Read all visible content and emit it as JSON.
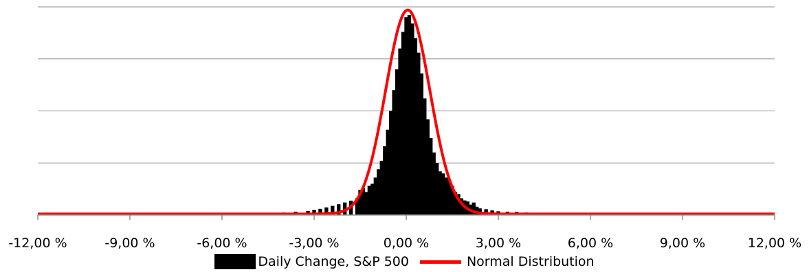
{
  "chart_data": {
    "type": "bar",
    "title": "",
    "xlabel": "",
    "ylabel": "",
    "x_unit": "percent",
    "xlim": [
      -12,
      12
    ],
    "x_ticks": [
      -12,
      -9,
      -6,
      -3,
      0,
      3,
      6,
      9,
      12
    ],
    "x_tick_labels": [
      "-12,00 %",
      "-9,00 %",
      "-6,00 %",
      "-3,00 %",
      "0,00 %",
      "3,00 %",
      "6,00 %",
      "9,00 %",
      "12,00 %"
    ],
    "y_gridlines": 4,
    "grid": true,
    "legend_placement": "bottom",
    "series": [
      {
        "name": "Daily Change, S&P 500",
        "type": "histogram",
        "color": "#000000",
        "points": [
          {
            "x": -10.0,
            "y": 0.002
          },
          {
            "x": -9.4,
            "y": 0.006
          },
          {
            "x": -7.8,
            "y": 0.004
          },
          {
            "x": -6.8,
            "y": 0.005
          },
          {
            "x": -6.2,
            "y": 0.006
          },
          {
            "x": -5.5,
            "y": 0.006
          },
          {
            "x": -5.2,
            "y": 0.008
          },
          {
            "x": -4.8,
            "y": 0.009
          },
          {
            "x": -4.4,
            "y": 0.011
          },
          {
            "x": -4.0,
            "y": 0.012
          },
          {
            "x": -3.6,
            "y": 0.015
          },
          {
            "x": -3.2,
            "y": 0.02
          },
          {
            "x": -3.0,
            "y": 0.024
          },
          {
            "x": -2.8,
            "y": 0.03
          },
          {
            "x": -2.6,
            "y": 0.036
          },
          {
            "x": -2.4,
            "y": 0.044
          },
          {
            "x": -2.2,
            "y": 0.052
          },
          {
            "x": -2.0,
            "y": 0.06
          },
          {
            "x": -1.8,
            "y": 0.068
          },
          {
            "x": -1.6,
            "y": 0.08
          },
          {
            "x": -1.5,
            "y": 0.12
          },
          {
            "x": -1.4,
            "y": 0.13
          },
          {
            "x": -1.3,
            "y": 0.11
          },
          {
            "x": -1.2,
            "y": 0.14
          },
          {
            "x": -1.1,
            "y": 0.15
          },
          {
            "x": -1.0,
            "y": 0.18
          },
          {
            "x": -0.9,
            "y": 0.22
          },
          {
            "x": -0.8,
            "y": 0.26
          },
          {
            "x": -0.7,
            "y": 0.33
          },
          {
            "x": -0.6,
            "y": 0.41
          },
          {
            "x": -0.5,
            "y": 0.5
          },
          {
            "x": -0.4,
            "y": 0.6
          },
          {
            "x": -0.3,
            "y": 0.7
          },
          {
            "x": -0.2,
            "y": 0.8
          },
          {
            "x": -0.1,
            "y": 0.88
          },
          {
            "x": 0.0,
            "y": 0.95
          },
          {
            "x": 0.1,
            "y": 0.96
          },
          {
            "x": 0.2,
            "y": 0.92
          },
          {
            "x": 0.3,
            "y": 0.85
          },
          {
            "x": 0.4,
            "y": 0.78
          },
          {
            "x": 0.5,
            "y": 0.68
          },
          {
            "x": 0.6,
            "y": 0.56
          },
          {
            "x": 0.7,
            "y": 0.46
          },
          {
            "x": 0.8,
            "y": 0.37
          },
          {
            "x": 0.9,
            "y": 0.3
          },
          {
            "x": 1.0,
            "y": 0.25
          },
          {
            "x": 1.1,
            "y": 0.21
          },
          {
            "x": 1.2,
            "y": 0.2
          },
          {
            "x": 1.3,
            "y": 0.18
          },
          {
            "x": 1.4,
            "y": 0.17
          },
          {
            "x": 1.5,
            "y": 0.14
          },
          {
            "x": 1.6,
            "y": 0.11
          },
          {
            "x": 1.7,
            "y": 0.1
          },
          {
            "x": 1.8,
            "y": 0.08
          },
          {
            "x": 1.9,
            "y": 0.07
          },
          {
            "x": 2.0,
            "y": 0.065
          },
          {
            "x": 2.1,
            "y": 0.05
          },
          {
            "x": 2.2,
            "y": 0.06
          },
          {
            "x": 2.3,
            "y": 0.04
          },
          {
            "x": 2.4,
            "y": 0.032
          },
          {
            "x": 2.6,
            "y": 0.028
          },
          {
            "x": 2.8,
            "y": 0.022
          },
          {
            "x": 3.0,
            "y": 0.018
          },
          {
            "x": 3.3,
            "y": 0.015
          },
          {
            "x": 3.6,
            "y": 0.014
          },
          {
            "x": 3.9,
            "y": 0.012
          },
          {
            "x": 4.2,
            "y": 0.01
          },
          {
            "x": 4.6,
            "y": 0.008
          },
          {
            "x": 5.0,
            "y": 0.006
          },
          {
            "x": 5.4,
            "y": 0.005
          },
          {
            "x": 5.8,
            "y": 0.005
          },
          {
            "x": 6.4,
            "y": 0.004
          },
          {
            "x": 6.8,
            "y": 0.004
          },
          {
            "x": 10.2,
            "y": 0.003
          },
          {
            "x": 11.0,
            "y": 0.003
          }
        ]
      },
      {
        "name": "Normal Distribution",
        "type": "line",
        "color": "#ff0000",
        "distribution": "normal",
        "mean": 0.05,
        "std": 0.72,
        "peak": 0.98
      }
    ]
  }
}
